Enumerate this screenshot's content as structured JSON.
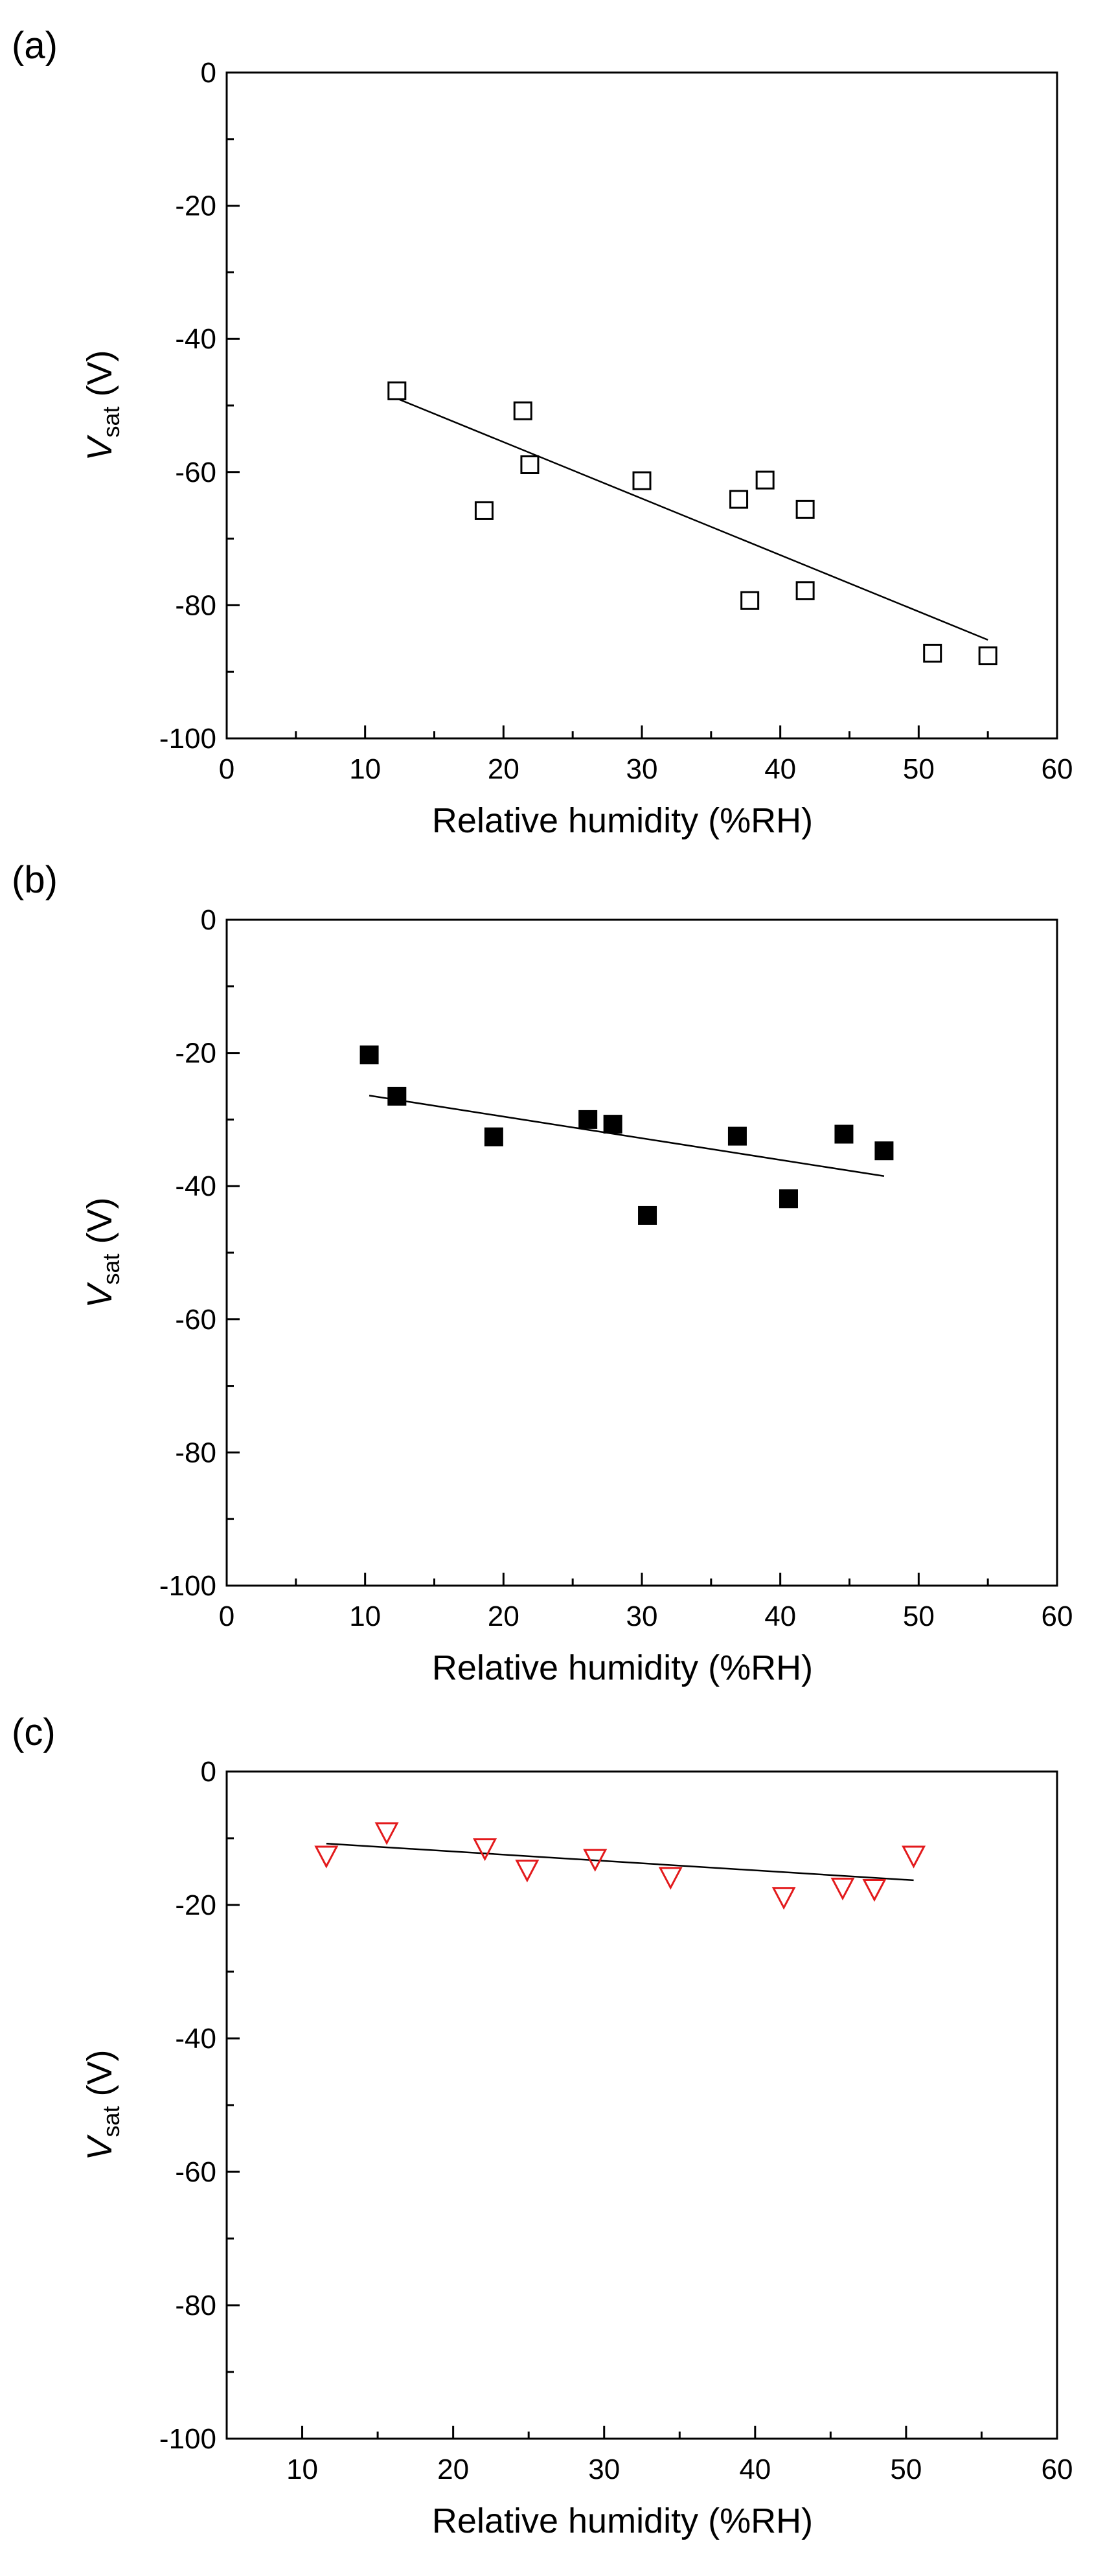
{
  "chart_data": [
    {
      "panel_label": "(a)",
      "type": "scatter",
      "xlabel": "Relative humidity (%RH)",
      "ylabel": {
        "main": "V",
        "sub": "sat",
        "unit": " (V)"
      },
      "xlim": [
        0,
        60
      ],
      "ylim": [
        -100,
        0
      ],
      "xticks": [
        0,
        10,
        20,
        30,
        40,
        50,
        60
      ],
      "yticks": [
        0,
        -20,
        -40,
        -60,
        -80,
        -100
      ],
      "marker": "open-square",
      "color": "#000000",
      "points": [
        {
          "x": 12.3,
          "y": -47.8
        },
        {
          "x": 18.6,
          "y": -65.8
        },
        {
          "x": 21.4,
          "y": -50.8
        },
        {
          "x": 21.9,
          "y": -58.9
        },
        {
          "x": 30.0,
          "y": -61.3
        },
        {
          "x": 37.0,
          "y": -64.1
        },
        {
          "x": 37.8,
          "y": -79.3
        },
        {
          "x": 38.9,
          "y": -61.2
        },
        {
          "x": 41.8,
          "y": -65.6
        },
        {
          "x": 41.8,
          "y": -77.8
        },
        {
          "x": 51.0,
          "y": -87.2
        },
        {
          "x": 55.0,
          "y": -87.6
        }
      ],
      "fit": {
        "x": [
          12.0,
          55.0
        ],
        "y": [
          -48.7,
          -85.2
        ]
      }
    },
    {
      "panel_label": "(b)",
      "type": "scatter",
      "xlabel": "Relative humidity (%RH)",
      "ylabel": {
        "main": "V",
        "sub": "sat",
        "unit": " (V)"
      },
      "xlim": [
        0,
        60
      ],
      "ylim": [
        -100,
        0
      ],
      "xticks": [
        0,
        10,
        20,
        30,
        40,
        50,
        60
      ],
      "yticks": [
        0,
        -20,
        -40,
        -60,
        -80,
        -100
      ],
      "marker": "filled-square",
      "color": "#000000",
      "points": [
        {
          "x": 10.3,
          "y": -20.3
        },
        {
          "x": 12.3,
          "y": -26.5
        },
        {
          "x": 19.3,
          "y": -32.6
        },
        {
          "x": 26.1,
          "y": -30.0
        },
        {
          "x": 27.9,
          "y": -30.7
        },
        {
          "x": 30.4,
          "y": -44.4
        },
        {
          "x": 36.9,
          "y": -32.5
        },
        {
          "x": 40.6,
          "y": -41.9
        },
        {
          "x": 44.6,
          "y": -32.2
        },
        {
          "x": 47.5,
          "y": -34.7
        }
      ],
      "fit": {
        "x": [
          10.3,
          47.5
        ],
        "y": [
          -26.4,
          -38.5
        ]
      }
    },
    {
      "panel_label": "(c)",
      "type": "scatter",
      "xlabel": "Relative humidity (%RH)",
      "ylabel": {
        "main": "V",
        "sub": "sat",
        "unit": " (V)"
      },
      "xlim": [
        5,
        60
      ],
      "ylim": [
        -100,
        0
      ],
      "xticks": [
        10,
        20,
        30,
        40,
        50,
        60
      ],
      "yticks": [
        0,
        -20,
        -40,
        -60,
        -80,
        -100
      ],
      "marker": "open-down-triangle",
      "color": "#e31a1c",
      "points": [
        {
          "x": 11.6,
          "y": -12.5
        },
        {
          "x": 15.6,
          "y": -9.0
        },
        {
          "x": 22.1,
          "y": -11.4
        },
        {
          "x": 24.9,
          "y": -14.6
        },
        {
          "x": 29.4,
          "y": -13.0
        },
        {
          "x": 34.4,
          "y": -15.7
        },
        {
          "x": 41.9,
          "y": -18.7
        },
        {
          "x": 45.8,
          "y": -17.3
        },
        {
          "x": 47.9,
          "y": -17.5
        },
        {
          "x": 50.5,
          "y": -12.5
        }
      ],
      "fit": {
        "x": [
          11.6,
          50.5
        ],
        "y": [
          -10.8,
          -16.3
        ]
      }
    }
  ]
}
